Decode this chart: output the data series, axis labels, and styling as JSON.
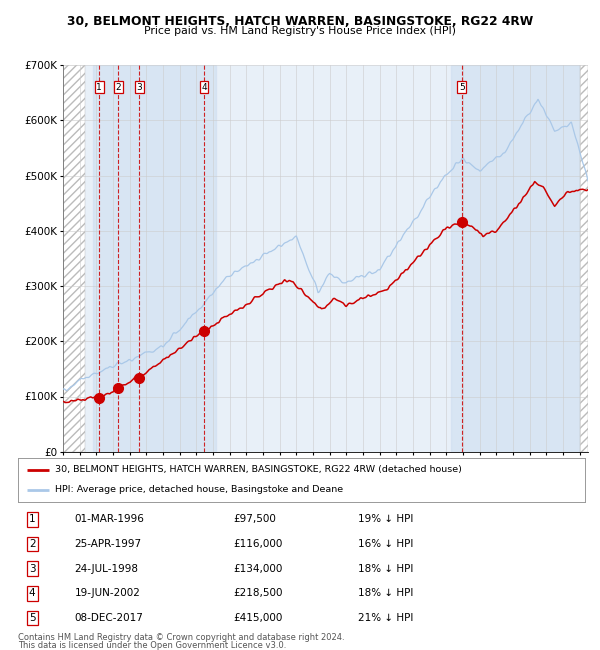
{
  "title": "30, BELMONT HEIGHTS, HATCH WARREN, BASINGSTOKE, RG22 4RW",
  "subtitle": "Price paid vs. HM Land Registry's House Price Index (HPI)",
  "transactions": [
    {
      "num": 1,
      "date": "01-MAR-1996",
      "year": 1996.17,
      "price": 97500,
      "pct": "19%"
    },
    {
      "num": 2,
      "date": "25-APR-1997",
      "year": 1997.32,
      "price": 116000,
      "pct": "16%"
    },
    {
      "num": 3,
      "date": "24-JUL-1998",
      "year": 1998.56,
      "price": 134000,
      "pct": "18%"
    },
    {
      "num": 4,
      "date": "19-JUN-2002",
      "year": 2002.46,
      "price": 218500,
      "pct": "18%"
    },
    {
      "num": 5,
      "date": "08-DEC-2017",
      "year": 2017.93,
      "price": 415000,
      "pct": "21%"
    }
  ],
  "legend_label_red": "30, BELMONT HEIGHTS, HATCH WARREN, BASINGSTOKE, RG22 4RW (detached house)",
  "legend_label_blue": "HPI: Average price, detached house, Basingstoke and Deane",
  "footnote1": "Contains HM Land Registry data © Crown copyright and database right 2024.",
  "footnote2": "This data is licensed under the Open Government Licence v3.0.",
  "table_rows": [
    [
      "1",
      "01-MAR-1996",
      "£97,500",
      "19% ↓ HPI"
    ],
    [
      "2",
      "25-APR-1997",
      "£116,000",
      "16% ↓ HPI"
    ],
    [
      "3",
      "24-JUL-1998",
      "£134,000",
      "18% ↓ HPI"
    ],
    [
      "4",
      "19-JUN-2002",
      "£218,500",
      "18% ↓ HPI"
    ],
    [
      "5",
      "08-DEC-2017",
      "£415,000",
      "21% ↓ HPI"
    ]
  ],
  "hpi_color": "#aac8e8",
  "price_color": "#cc0000",
  "marker_color": "#cc0000",
  "dashed_line_color": "#cc0000",
  "grid_color": "#cccccc",
  "bg_color": "#e8f0f8",
  "ylim": [
    0,
    700000
  ],
  "xlim_start": 1994.0,
  "xlim_end": 2025.5
}
